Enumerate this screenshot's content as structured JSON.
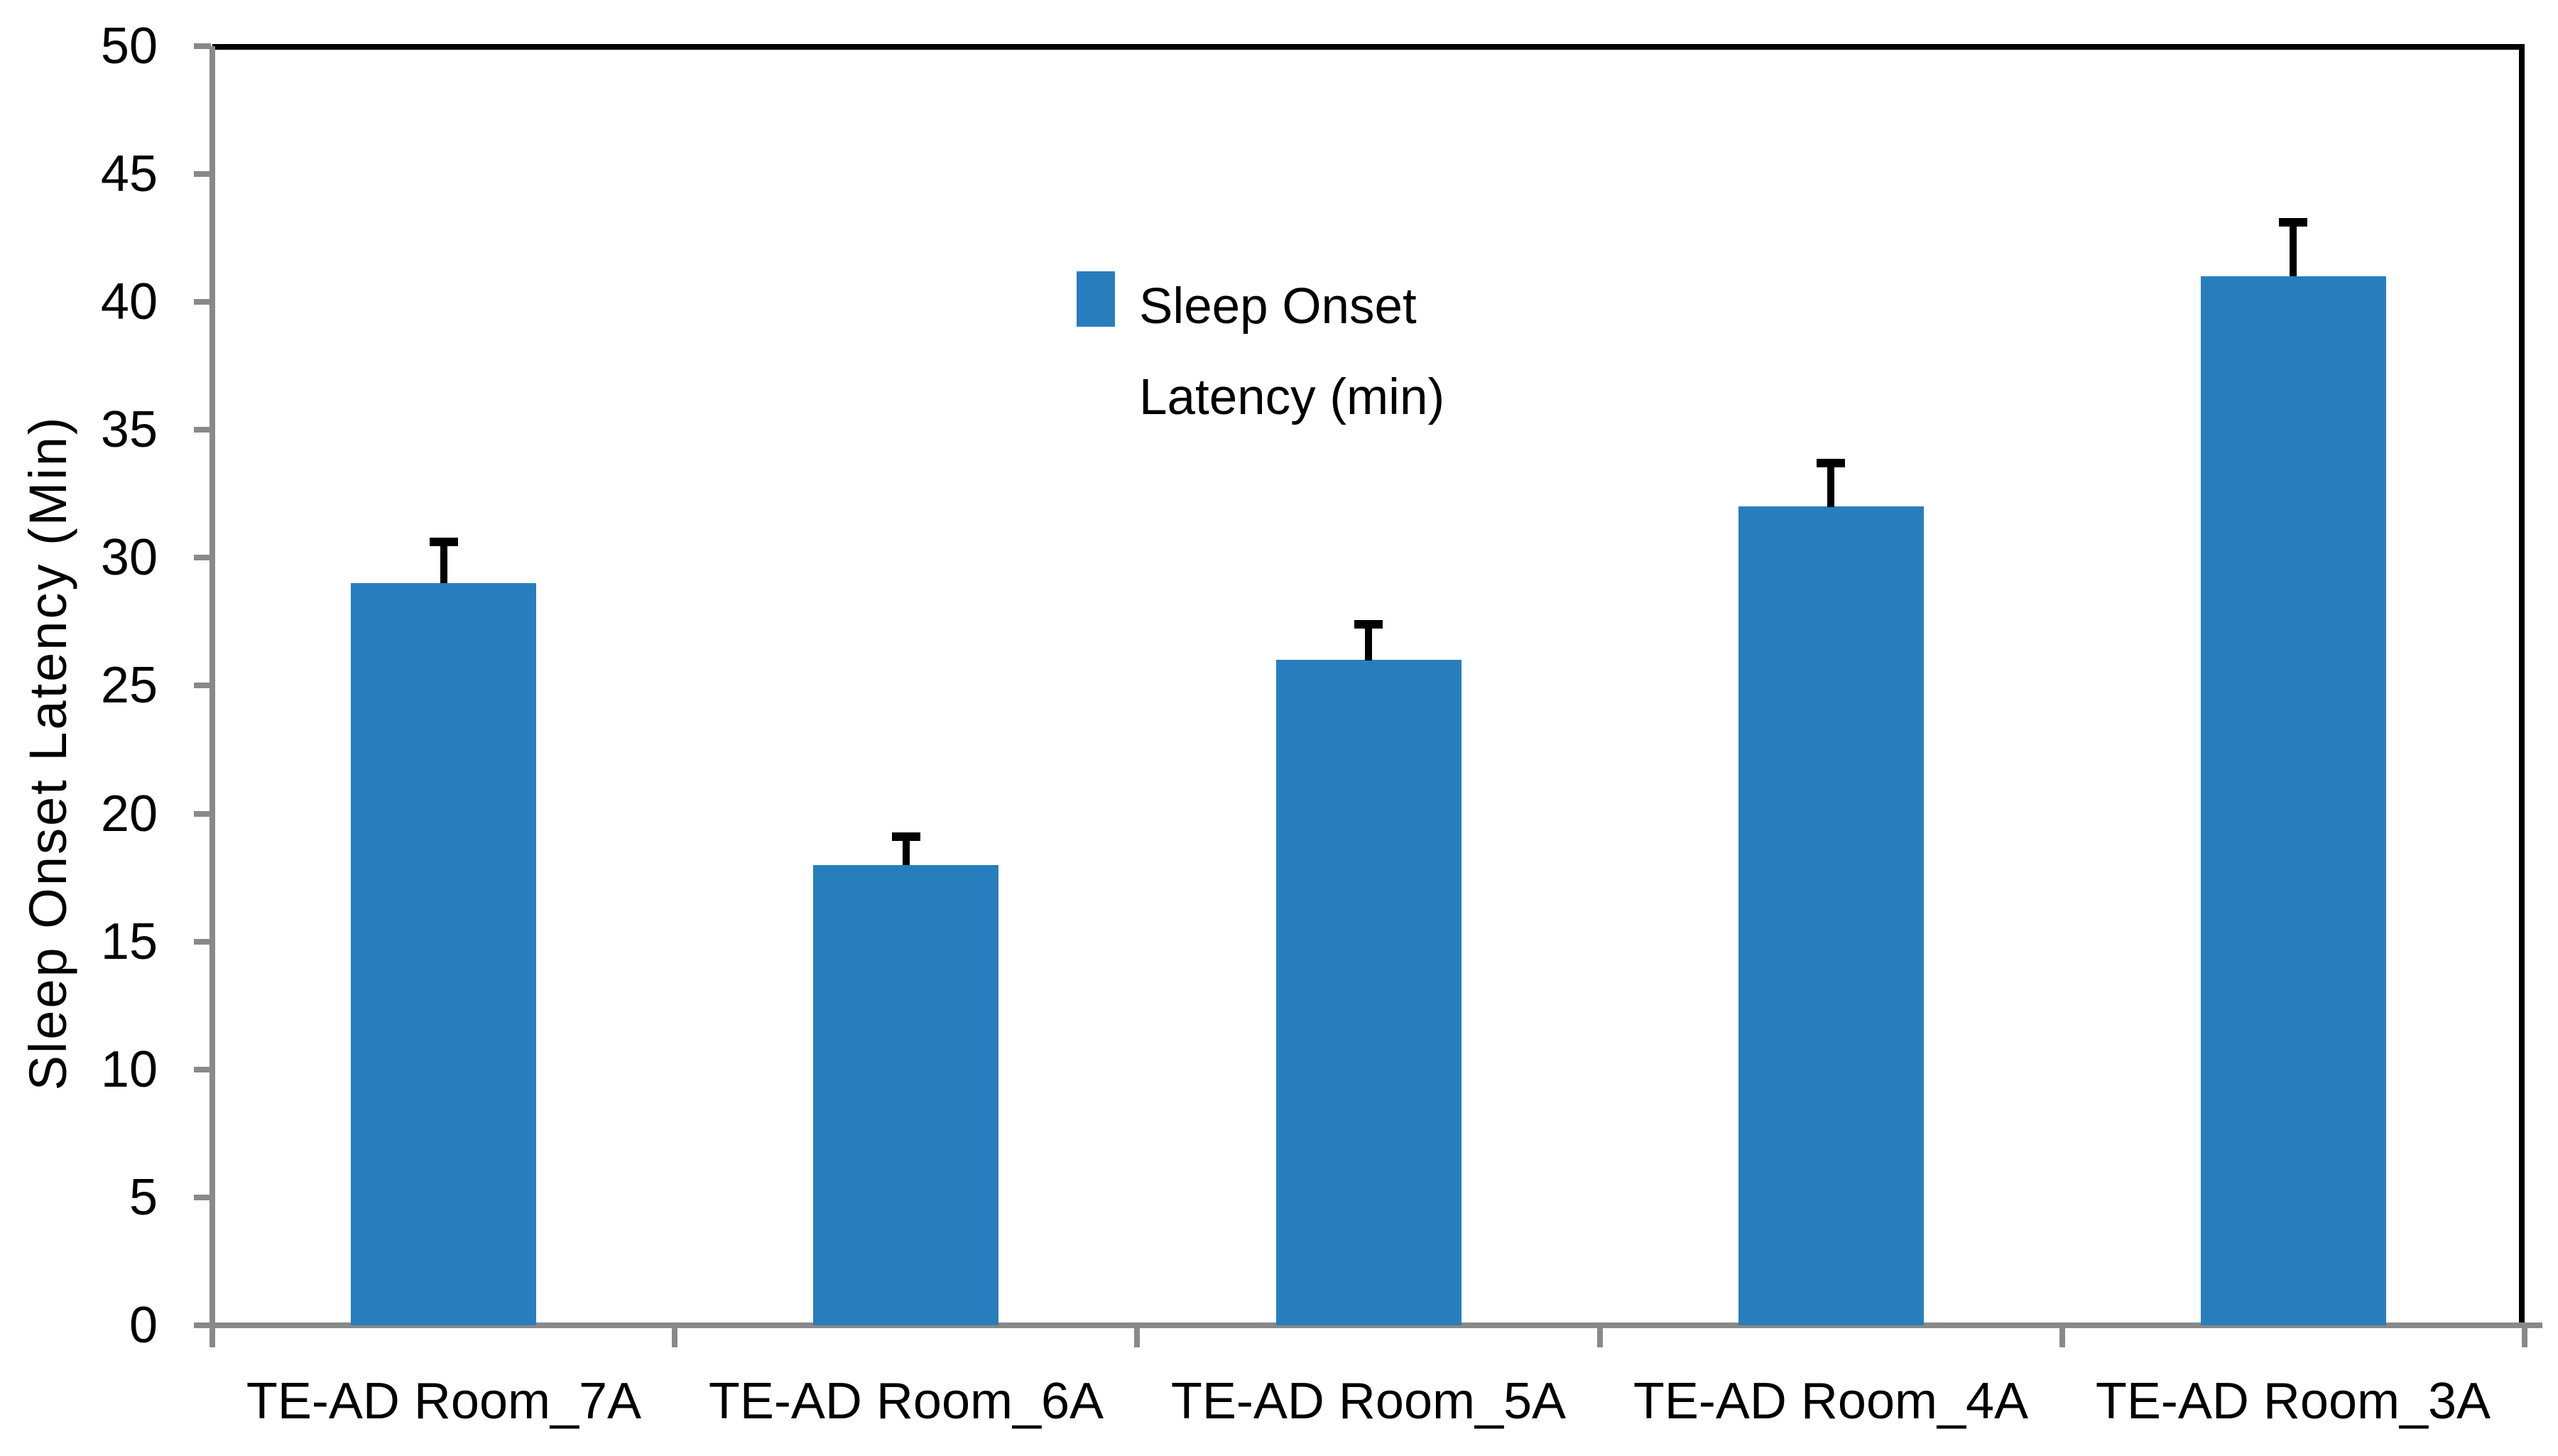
{
  "chart_data": {
    "type": "bar",
    "title": "",
    "xlabel": "",
    "ylabel": "Sleep Onset Latency (Min)",
    "categories": [
      "TE-AD Room_7A",
      "TE-AD Room_6A",
      "TE-AD Room_5A",
      "TE-AD Room_4A",
      "TE-AD Room_3A"
    ],
    "series": [
      {
        "name": "Sleep Onset Latency (min)",
        "values": [
          29,
          18,
          26,
          32,
          41
        ],
        "errors_plus": [
          1.5,
          1.0,
          1.3,
          1.6,
          2.0
        ]
      }
    ],
    "ylim": [
      0,
      50
    ],
    "yticks": [
      0,
      5,
      10,
      15,
      20,
      25,
      30,
      35,
      40,
      45,
      50
    ],
    "grid": false,
    "legend_position": "inside-upper-middle",
    "bar_color": "#287ebd",
    "axis_color": "#898989",
    "plot_border_color": "#000000",
    "error_bar_color": "#000000"
  },
  "legend": {
    "label": "Sleep Onset Latency (min)"
  }
}
